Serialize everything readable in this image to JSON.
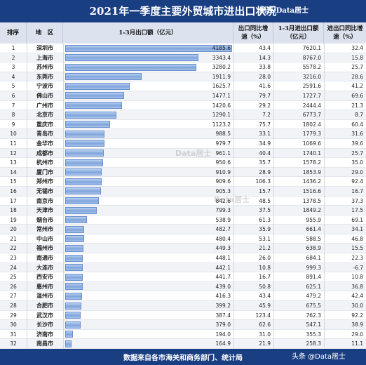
{
  "title": "2021年一季度主要外贸城市进出口状况",
  "credit": "制表:Data居士",
  "source_note": "数据来自各市海关和商务部门、统计局",
  "watermarks": [
    "Data居士",
    "Data居士"
  ],
  "logo_text": "头条 @Data居士",
  "headers": {
    "rank": "排序",
    "city": "地　区",
    "export": "1-3月出口额（亿元）",
    "export_growth": "出口同比增速（%）",
    "total": "1-3月进出口额（亿元）",
    "total_growth": "进出口同比增速（%）"
  },
  "chart_data": {
    "type": "bar",
    "orientation": "horizontal",
    "xlim": [
      0,
      4185.6
    ],
    "categories": [
      "深圳市",
      "上海市",
      "苏州市",
      "东莞市",
      "宁波市",
      "佛山市",
      "广州市",
      "北京市",
      "重庆市",
      "青岛市",
      "金华市",
      "成都市",
      "杭州市",
      "厦门市",
      "郑州市",
      "无锡市",
      "南京市",
      "天津市",
      "烟台市",
      "常州市",
      "中山市",
      "福州市",
      "南通市",
      "大连市",
      "西安市",
      "惠州市",
      "温州市",
      "合肥市",
      "武汉市",
      "长沙市",
      "济南市",
      "南昌市"
    ],
    "values": [
      4185.6,
      3343.4,
      3280.2,
      1911.9,
      1625.7,
      1477.1,
      1420.6,
      1290.1,
      1123.2,
      988.5,
      979.7,
      961.1,
      950.6,
      910.9,
      909.6,
      905.3,
      842.6,
      799.3,
      538.9,
      482.7,
      480.4,
      449.3,
      448.1,
      442.1,
      441.7,
      439.0,
      416.3,
      399.2,
      387.4,
      379.0,
      194.0,
      164.9
    ],
    "export_growth": [
      "43.4",
      "14.3",
      "33.8",
      "28.0",
      "41.6",
      "79.7",
      "29.2",
      "7.2",
      "75.7",
      "33.1",
      "34.9",
      "40.4",
      "35.7",
      "28.9",
      "106.3",
      "15.7",
      "48.5",
      "37.5",
      "61.3",
      "35.9",
      "53.1",
      "21.2",
      "26.0",
      "10.8",
      "16.7",
      "50.8",
      "43.4",
      "45.9",
      "123.4",
      "62.6",
      "31.0",
      "21.9"
    ],
    "total_import_export": [
      "7620.1",
      "8767.0",
      "5578.2",
      "3216.0",
      "2591.6",
      "1727.7",
      "2444.4",
      "6773.7",
      "1802.4",
      "1779.3",
      "1069.6",
      "1740.1",
      "1578.2",
      "1853.9",
      "1436.2",
      "1516.6",
      "1378.5",
      "1849.2",
      "955.9",
      "661.4",
      "588.5",
      "638.9",
      "684.1",
      "999.3",
      "891.4",
      "625.1",
      "479.2",
      "675.5",
      "762.3",
      "547.1",
      "355.3",
      "258.3"
    ],
    "total_growth": [
      "32.4",
      "15.8",
      "25.7",
      "28.6",
      "41.2",
      "69.6",
      "21.3",
      "8.7",
      "60.4",
      "31.6",
      "39.6",
      "25.7",
      "35.0",
      "29.0",
      "92.4",
      "16.7",
      "37.3",
      "17.5",
      "69.1",
      "34.1",
      "46.8",
      "15.5",
      "22.3",
      "-6.7",
      "10.8",
      "36.8",
      "42.4",
      "30.0",
      "92.2",
      "38.9",
      "29.0",
      "11.1"
    ]
  }
}
